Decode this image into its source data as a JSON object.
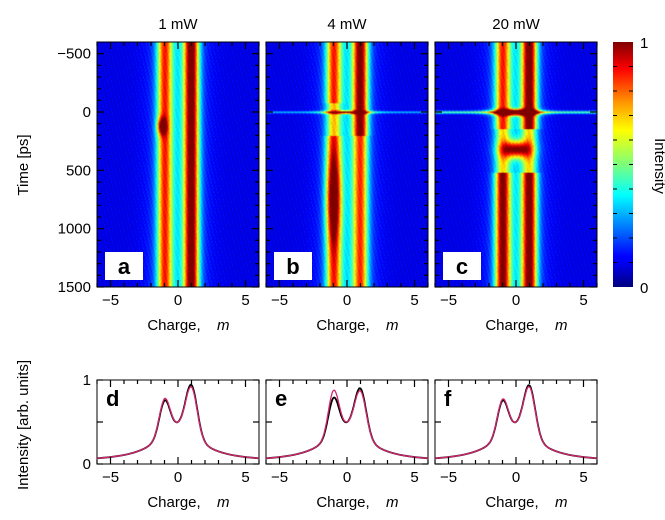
{
  "colorbar": {
    "label": "Intensity",
    "min_label": "0",
    "max_label": "1",
    "colormap": "jet"
  },
  "chart_data": [
    {
      "type": "heatmap",
      "panel_label": "a",
      "title": "1 mW",
      "xlabel": "Charge, m",
      "ylabel": "Time [ps]",
      "xlim": [
        -6,
        6
      ],
      "ylim": [
        1500,
        -600
      ],
      "xticks": [
        "−5",
        "0",
        "5"
      ],
      "yticks": [
        "−500",
        "0",
        "500",
        "1000",
        "1500"
      ],
      "ytick_values": [
        -500,
        0,
        500,
        1000,
        1500
      ],
      "peaks": [
        {
          "x": -1,
          "amplitude": 0.62,
          "width": 0.55
        },
        {
          "x": 1,
          "amplitude": 0.85,
          "width": 0.55
        }
      ],
      "features": [
        {
          "x": -1.2,
          "t": 120,
          "amplitude": 0.9
        }
      ]
    },
    {
      "type": "heatmap",
      "panel_label": "b",
      "title": "4 mW",
      "xlabel": "Charge, m",
      "xlim": [
        -6,
        6
      ],
      "ylim": [
        1500,
        -600
      ],
      "xticks": [
        "−5",
        "0",
        "5"
      ],
      "peaks": [
        {
          "x": -1,
          "amplitude": 0.62,
          "width": 0.55
        },
        {
          "x": 1,
          "amplitude": 0.85,
          "width": 0.55
        }
      ],
      "features": [
        {
          "x": -1.0,
          "t": 700,
          "amplitude": 0.95
        },
        {
          "x": 0,
          "t": 0,
          "amplitude": 0.7
        }
      ]
    },
    {
      "type": "heatmap",
      "panel_label": "c",
      "title": "20 mW",
      "xlabel": "Charge, m",
      "xlim": [
        -6,
        6
      ],
      "ylim": [
        1500,
        -600
      ],
      "xticks": [
        "−5",
        "0",
        "5"
      ],
      "peaks": [
        {
          "x": -1,
          "amplitude": 0.62,
          "width": 0.55
        },
        {
          "x": 1,
          "amplitude": 0.85,
          "width": 0.55
        }
      ],
      "features": [
        {
          "x": 0,
          "t": 0,
          "amplitude": 1.0
        },
        {
          "x": 0,
          "t": 320,
          "amplitude": 1.0
        }
      ]
    },
    {
      "type": "line",
      "panel_label": "d",
      "xlabel": "Charge, m",
      "ylabel": "Intensity [arb. units]",
      "xlim": [
        -6,
        6
      ],
      "ylim": [
        0,
        1
      ],
      "xticks": [
        "−5",
        "0",
        "5"
      ],
      "yticks": [
        "0",
        "1"
      ],
      "series": [
        {
          "color": "#000000",
          "peak_left": 0.72,
          "peak_right": 0.97
        },
        {
          "color": "#d6246e",
          "peak_left": 0.76,
          "peak_right": 0.93
        }
      ]
    },
    {
      "type": "line",
      "panel_label": "e",
      "xlabel": "Charge, m",
      "xlim": [
        -6,
        6
      ],
      "ylim": [
        0,
        1
      ],
      "xticks": [
        "−5",
        "0",
        "5"
      ],
      "series": [
        {
          "color": "#000000",
          "peak_left": 0.78,
          "peak_right": 0.9
        },
        {
          "color": "#d6246e",
          "peak_left": 0.94,
          "peak_right": 0.85
        }
      ]
    },
    {
      "type": "line",
      "panel_label": "f",
      "xlabel": "Charge, m",
      "xlim": [
        -6,
        6
      ],
      "ylim": [
        0,
        1
      ],
      "xticks": [
        "−5",
        "0",
        "5"
      ],
      "series": [
        {
          "color": "#000000",
          "peak_left": 0.72,
          "peak_right": 0.96
        },
        {
          "color": "#d6246e",
          "peak_left": 0.75,
          "peak_right": 0.93
        }
      ]
    }
  ]
}
